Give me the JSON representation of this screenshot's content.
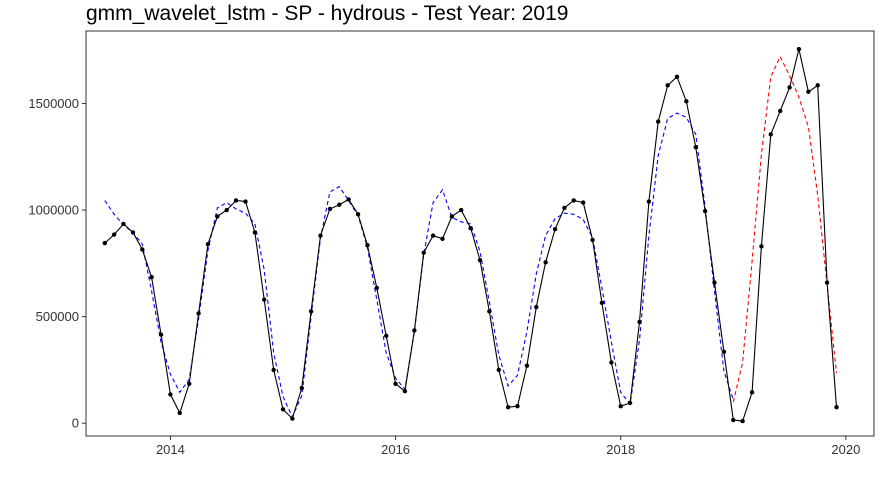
{
  "chart_data": {
    "type": "line",
    "title": "gmm_wavelet_lstm - SP - hydrous - Test Year: 2019",
    "xlabel": "",
    "ylabel": "",
    "xlim": [
      2013.25,
      2020.25
    ],
    "ylim": [
      -60000,
      1840000
    ],
    "x_ticks": [
      2014,
      2016,
      2018,
      2020
    ],
    "y_ticks": [
      0,
      500000,
      1000000,
      1500000
    ],
    "grid": false,
    "legend": "none",
    "colors": {
      "actual": "#000000",
      "fitted": "#0000ff",
      "forecast": "#ff0000",
      "axis": "#333333"
    },
    "series": [
      {
        "style": "solid-line-with-points",
        "x": [
          2013.417,
          2013.5,
          2013.583,
          2013.667,
          2013.75,
          2013.833,
          2013.917,
          2014.0,
          2014.083,
          2014.167,
          2014.25,
          2014.333,
          2014.417,
          2014.5,
          2014.583,
          2014.667,
          2014.75,
          2014.833,
          2014.917,
          2015.0,
          2015.083,
          2015.167,
          2015.25,
          2015.333,
          2015.417,
          2015.5,
          2015.583,
          2015.667,
          2015.75,
          2015.833,
          2015.917,
          2016.0,
          2016.083,
          2016.167,
          2016.25,
          2016.333,
          2016.417,
          2016.5,
          2016.583,
          2016.667,
          2016.75,
          2016.833,
          2016.917,
          2017.0,
          2017.083,
          2017.167,
          2017.25,
          2017.333,
          2017.417,
          2017.5,
          2017.583,
          2017.667,
          2017.75,
          2017.833,
          2017.917,
          2018.0,
          2018.083,
          2018.167,
          2018.25,
          2018.333,
          2018.417,
          2018.5,
          2018.583,
          2018.667,
          2018.75,
          2018.833,
          2018.917,
          2019.0,
          2019.083,
          2019.167,
          2019.25,
          2019.333,
          2019.417,
          2019.5,
          2019.583,
          2019.667,
          2019.75,
          2019.833,
          2019.917
        ],
        "y": [
          845000,
          885000,
          935000,
          895000,
          815000,
          685000,
          415000,
          135000,
          48000,
          185000,
          515000,
          840000,
          970000,
          1000000,
          1045000,
          1040000,
          895000,
          580000,
          250000,
          65000,
          22000,
          165000,
          525000,
          880000,
          1005000,
          1025000,
          1050000,
          980000,
          835000,
          635000,
          410000,
          185000,
          150000,
          435000,
          800000,
          880000,
          865000,
          970000,
          1000000,
          915000,
          765000,
          525000,
          250000,
          75000,
          80000,
          270000,
          545000,
          755000,
          910000,
          1010000,
          1045000,
          1035000,
          860000,
          565000,
          285000,
          80000,
          95000,
          475000,
          1040000,
          1415000,
          1585000,
          1625000,
          1510000,
          1295000,
          995000,
          660000,
          335000,
          15000,
          10000,
          145000,
          830000,
          1355000,
          1465000,
          1575000,
          1755000,
          1555000,
          1585000,
          660000,
          75000
        ]
      },
      {
        "style": "dashed",
        "x": [
          2013.417,
          2013.5,
          2013.583,
          2013.667,
          2013.75,
          2013.833,
          2013.917,
          2014.0,
          2014.083,
          2014.167,
          2014.25,
          2014.333,
          2014.417,
          2014.5,
          2014.583,
          2014.667,
          2014.75,
          2014.833,
          2014.917,
          2015.0,
          2015.083,
          2015.167,
          2015.25,
          2015.333,
          2015.417,
          2015.5,
          2015.583,
          2015.667,
          2015.75,
          2015.833,
          2015.917,
          2016.0,
          2016.083,
          2016.167,
          2016.25,
          2016.333,
          2016.417,
          2016.5,
          2016.583,
          2016.667,
          2016.75,
          2016.833,
          2016.917,
          2017.0,
          2017.083,
          2017.167,
          2017.25,
          2017.333,
          2017.417,
          2017.5,
          2017.583,
          2017.667,
          2017.75,
          2017.833,
          2017.917,
          2018.0,
          2018.083,
          2018.167,
          2018.25,
          2018.333,
          2018.417,
          2018.5,
          2018.583,
          2018.667,
          2018.75,
          2018.833,
          2018.917,
          2019.0
        ],
        "y": [
          1045000,
          980000,
          930000,
          895000,
          840000,
          620000,
          380000,
          230000,
          145000,
          205000,
          490000,
          810000,
          1010000,
          1035000,
          1005000,
          985000,
          935000,
          720000,
          330000,
          125000,
          30000,
          130000,
          500000,
          870000,
          1085000,
          1110000,
          1045000,
          975000,
          825000,
          580000,
          330000,
          210000,
          160000,
          430000,
          790000,
          1035000,
          1095000,
          965000,
          945000,
          935000,
          805000,
          570000,
          320000,
          175000,
          225000,
          430000,
          700000,
          880000,
          960000,
          985000,
          980000,
          955000,
          870000,
          635000,
          380000,
          145000,
          90000,
          390000,
          880000,
          1255000,
          1430000,
          1455000,
          1435000,
          1355000,
          1015000,
          620000,
          245000,
          110000
        ]
      },
      {
        "style": "dashed",
        "x": [
          2019.0,
          2019.083,
          2019.167,
          2019.25,
          2019.333,
          2019.417,
          2019.5,
          2019.583,
          2019.667,
          2019.75,
          2019.833,
          2019.917
        ],
        "y": [
          100000,
          285000,
          760000,
          1260000,
          1625000,
          1720000,
          1630000,
          1530000,
          1390000,
          1070000,
          650000,
          235000
        ]
      }
    ]
  }
}
